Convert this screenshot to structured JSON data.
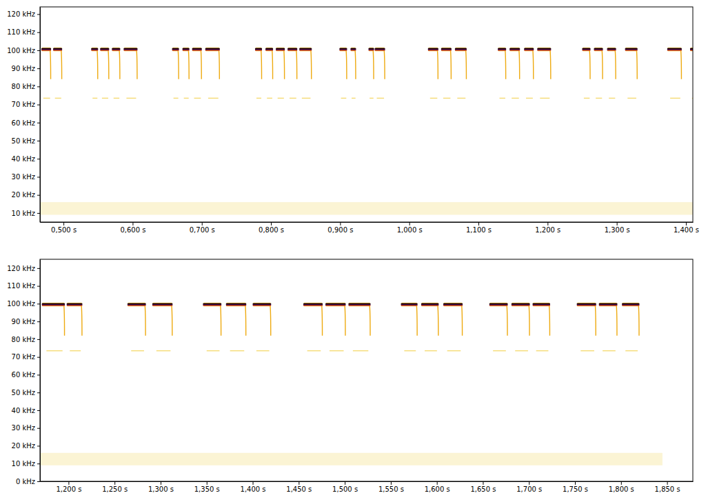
{
  "chart_data": [
    {
      "type": "spectrogram",
      "xlim": [
        0.466,
        1.41
      ],
      "xticks": [
        {
          "value": 0.5,
          "label": "0,500 s"
        },
        {
          "value": 0.6,
          "label": "0,600 s"
        },
        {
          "value": 0.7,
          "label": "0,700 s"
        },
        {
          "value": 0.8,
          "label": "0,800 s"
        },
        {
          "value": 0.9,
          "label": "0,900 s"
        },
        {
          "value": 1.0,
          "label": "1,000 s"
        },
        {
          "value": 1.1,
          "label": "1,100 s"
        },
        {
          "value": 1.2,
          "label": "1,200 s"
        },
        {
          "value": 1.3,
          "label": "1,300 s"
        },
        {
          "value": 1.4,
          "label": "1,400 s"
        }
      ],
      "ylim": [
        5,
        124
      ],
      "yticks": [
        {
          "value": 10,
          "label": "10 kHz"
        },
        {
          "value": 20,
          "label": "20 kHz"
        },
        {
          "value": 30,
          "label": "30 kHz"
        },
        {
          "value": 40,
          "label": "40 kHz"
        },
        {
          "value": 50,
          "label": "50 kHz"
        },
        {
          "value": 60,
          "label": "60 kHz"
        },
        {
          "value": 70,
          "label": "70 kHz"
        },
        {
          "value": 80,
          "label": "80 kHz"
        },
        {
          "value": 90,
          "label": "90 kHz"
        },
        {
          "value": 100,
          "label": "100 kHz"
        },
        {
          "value": 110,
          "label": "110 kHz"
        },
        {
          "value": 120,
          "label": "120 kHz"
        }
      ],
      "calls": {
        "start": [
          0.468,
          0.485,
          0.54,
          0.553,
          0.57,
          0.587,
          0.657,
          0.672,
          0.686,
          0.705,
          0.777,
          0.792,
          0.807,
          0.824,
          0.841,
          0.899,
          0.915,
          0.941,
          0.95,
          1.027,
          1.046,
          1.066,
          1.128,
          1.145,
          1.166,
          1.185,
          1.25,
          1.267,
          1.286,
          1.312,
          1.373,
          1.406
        ],
        "end": [
          0.482,
          0.498,
          0.55,
          0.566,
          0.582,
          0.607,
          0.667,
          0.682,
          0.7,
          0.726,
          0.787,
          0.803,
          0.82,
          0.838,
          0.859,
          0.91,
          0.923,
          0.949,
          0.965,
          1.042,
          1.061,
          1.083,
          1.14,
          1.16,
          1.18,
          1.205,
          1.262,
          1.28,
          1.299,
          1.33,
          1.394,
          1.42
        ],
        "frequency": [
          100.5,
          100.5,
          100.5,
          100.5,
          100.5,
          100.5,
          100.5,
          100.5,
          100.5,
          100.5,
          100.5,
          100.5,
          100.5,
          100.5,
          100.5,
          100.5,
          100.5,
          100.5,
          100.5,
          100.5,
          100.5,
          100.5,
          100.5,
          100.5,
          100.5,
          100.5,
          100.5,
          100.5,
          100.5,
          100.5,
          100.5,
          100.5
        ]
      },
      "terminal_frequency": 84,
      "harmonic_frequency": 73.5,
      "noise_band": {
        "low": 9,
        "high": 16,
        "start": 0.466,
        "end": 1.41
      }
    },
    {
      "type": "spectrogram",
      "xlim": [
        1.169,
        1.878
      ],
      "xticks": [
        {
          "value": 1.2,
          "label": "1,200 s"
        },
        {
          "value": 1.25,
          "label": "1,250 s"
        },
        {
          "value": 1.3,
          "label": "1,300 s"
        },
        {
          "value": 1.35,
          "label": "1,350 s"
        },
        {
          "value": 1.4,
          "label": "1,400 s"
        },
        {
          "value": 1.45,
          "label": "1,450 s"
        },
        {
          "value": 1.5,
          "label": "1,500 s"
        },
        {
          "value": 1.55,
          "label": "1,550 s"
        },
        {
          "value": 1.6,
          "label": "1,600 s"
        },
        {
          "value": 1.65,
          "label": "1,650 s"
        },
        {
          "value": 1.7,
          "label": "1,700 s"
        },
        {
          "value": 1.75,
          "label": "1,750 s"
        },
        {
          "value": 1.8,
          "label": "1,800 s"
        },
        {
          "value": 1.85,
          "label": "1,850 s"
        }
      ],
      "ylim": [
        0,
        125
      ],
      "yticks": [
        {
          "value": 0,
          "label": "0 kHz"
        },
        {
          "value": 10,
          "label": "10 kHz"
        },
        {
          "value": 20,
          "label": "20 kHz"
        },
        {
          "value": 30,
          "label": "30 kHz"
        },
        {
          "value": 40,
          "label": "40 kHz"
        },
        {
          "value": 50,
          "label": "50 kHz"
        },
        {
          "value": 60,
          "label": "60 kHz"
        },
        {
          "value": 70,
          "label": "70 kHz"
        },
        {
          "value": 80,
          "label": "80 kHz"
        },
        {
          "value": 90,
          "label": "90 kHz"
        },
        {
          "value": 100,
          "label": "100 kHz"
        },
        {
          "value": 110,
          "label": "110 kHz"
        },
        {
          "value": 120,
          "label": "120 kHz"
        }
      ],
      "calls": {
        "start": [
          1.171,
          1.198,
          1.264,
          1.291,
          1.346,
          1.371,
          1.4,
          1.455,
          1.479,
          1.504,
          1.561,
          1.583,
          1.607,
          1.657,
          1.681,
          1.704,
          1.752,
          1.776,
          1.801
        ],
        "end": [
          1.196,
          1.215,
          1.284,
          1.313,
          1.366,
          1.393,
          1.42,
          1.476,
          1.501,
          1.528,
          1.579,
          1.602,
          1.628,
          1.677,
          1.701,
          1.723,
          1.773,
          1.796,
          1.82
        ],
        "frequency": [
          99.5,
          99.5,
          99.5,
          99.5,
          99.5,
          99.5,
          99.5,
          99.5,
          99.5,
          99.5,
          99.5,
          99.5,
          99.5,
          99.5,
          99.5,
          99.5,
          99.5,
          99.5,
          99.5
        ]
      },
      "terminal_frequency": 82,
      "harmonic_frequency": 73.5,
      "noise_band": {
        "low": 9,
        "high": 16,
        "start": 1.169,
        "end": 1.845
      }
    }
  ]
}
